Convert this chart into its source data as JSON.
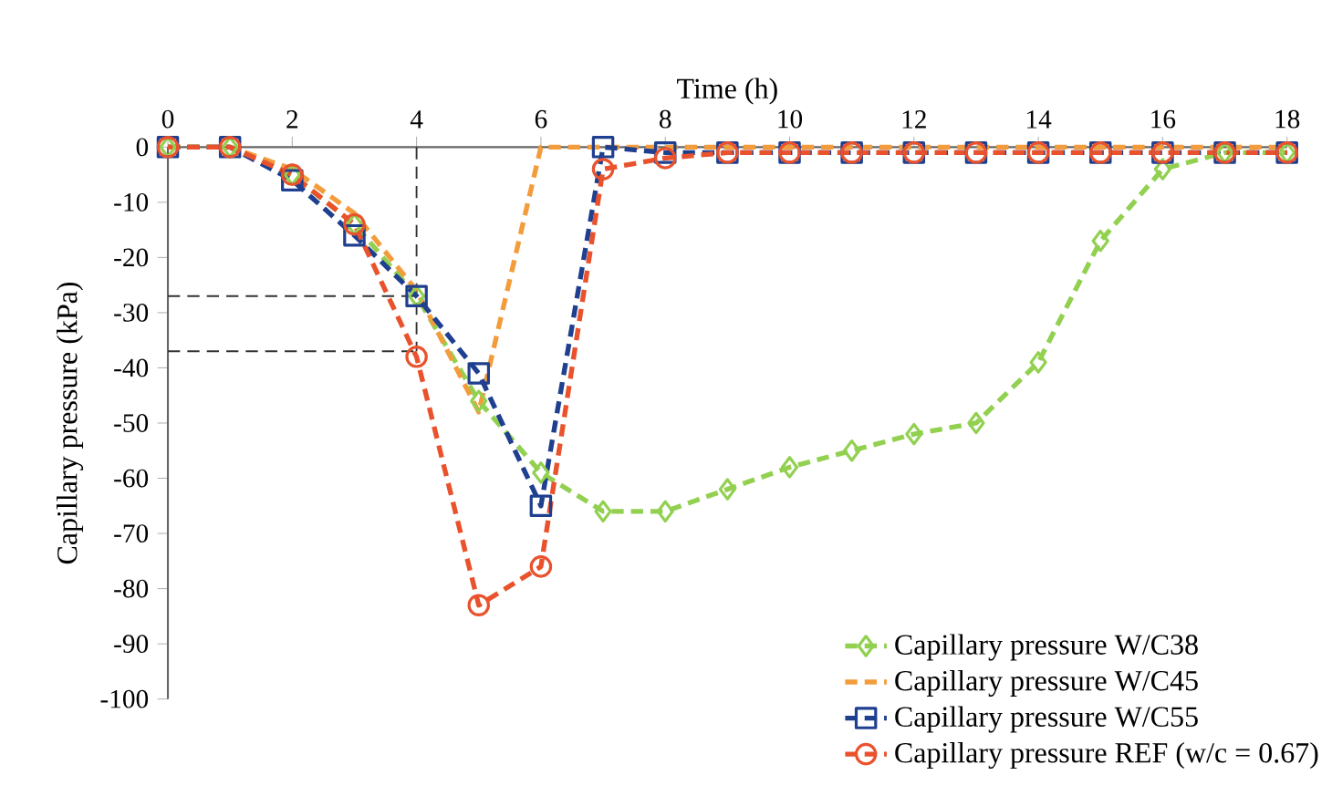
{
  "chart_data": {
    "type": "line",
    "xlabel": "Time (h)",
    "ylabel": "Capillary pressure (kPa)",
    "x": [
      0,
      1,
      2,
      3,
      4,
      5,
      6,
      7,
      8,
      9,
      10,
      11,
      12,
      13,
      14,
      15,
      16,
      17,
      18
    ],
    "xlim": [
      0,
      18
    ],
    "xticks": [
      0,
      2,
      4,
      6,
      8,
      10,
      12,
      14,
      16,
      18
    ],
    "ylim": [
      -100,
      0
    ],
    "yticks": [
      -100,
      -90,
      -80,
      -70,
      -60,
      -50,
      -40,
      -30,
      -20,
      -10,
      0
    ],
    "grid": false,
    "legend": "bottom right",
    "line_style": "dashed",
    "tick_labels": "xy",
    "series": [
      {
        "name": "Capillary pressure W/C38",
        "color": "#92d050",
        "marker": "diamond",
        "values": [
          0,
          0,
          -5,
          -14,
          -27,
          -46,
          -59,
          -66,
          -66,
          -62,
          -58,
          -55,
          -52,
          -50,
          -39,
          -17,
          -4,
          -1,
          -1
        ]
      },
      {
        "name": "Capillary pressure W/C45",
        "color": "#f39c3c",
        "marker": "none",
        "values": [
          0,
          0,
          -4,
          -12,
          -26,
          -48,
          0,
          0,
          0,
          0,
          0,
          0,
          0,
          0,
          0,
          0,
          0,
          0,
          0
        ]
      },
      {
        "name": "Capillary pressure W/C55",
        "color": "#1f3f8f",
        "marker": "square",
        "values": [
          0,
          0,
          -6,
          -16,
          -27,
          -41,
          -65,
          0,
          -1,
          -1,
          -1,
          -1,
          -1,
          -1,
          -1,
          -1,
          -1,
          -1,
          -1
        ]
      },
      {
        "name": "Capillary pressure REF (w/c = 0.67)",
        "color": "#e9522c",
        "marker": "circle",
        "values": [
          0,
          0,
          -5,
          -14,
          -38,
          -83,
          -76,
          -4,
          -2,
          -1,
          -1,
          -1,
          -1,
          -1,
          -1,
          -1,
          -1,
          -1,
          -1
        ]
      }
    ],
    "ref_lines": [
      {
        "axis": "x",
        "value": 4,
        "color": "#333333",
        "line_style": "dashed"
      },
      {
        "axis": "y",
        "value": -27,
        "color": "#333333",
        "line_style": "dashed"
      },
      {
        "axis": "y",
        "value": -37,
        "color": "#333333",
        "line_style": "dashed"
      }
    ]
  }
}
